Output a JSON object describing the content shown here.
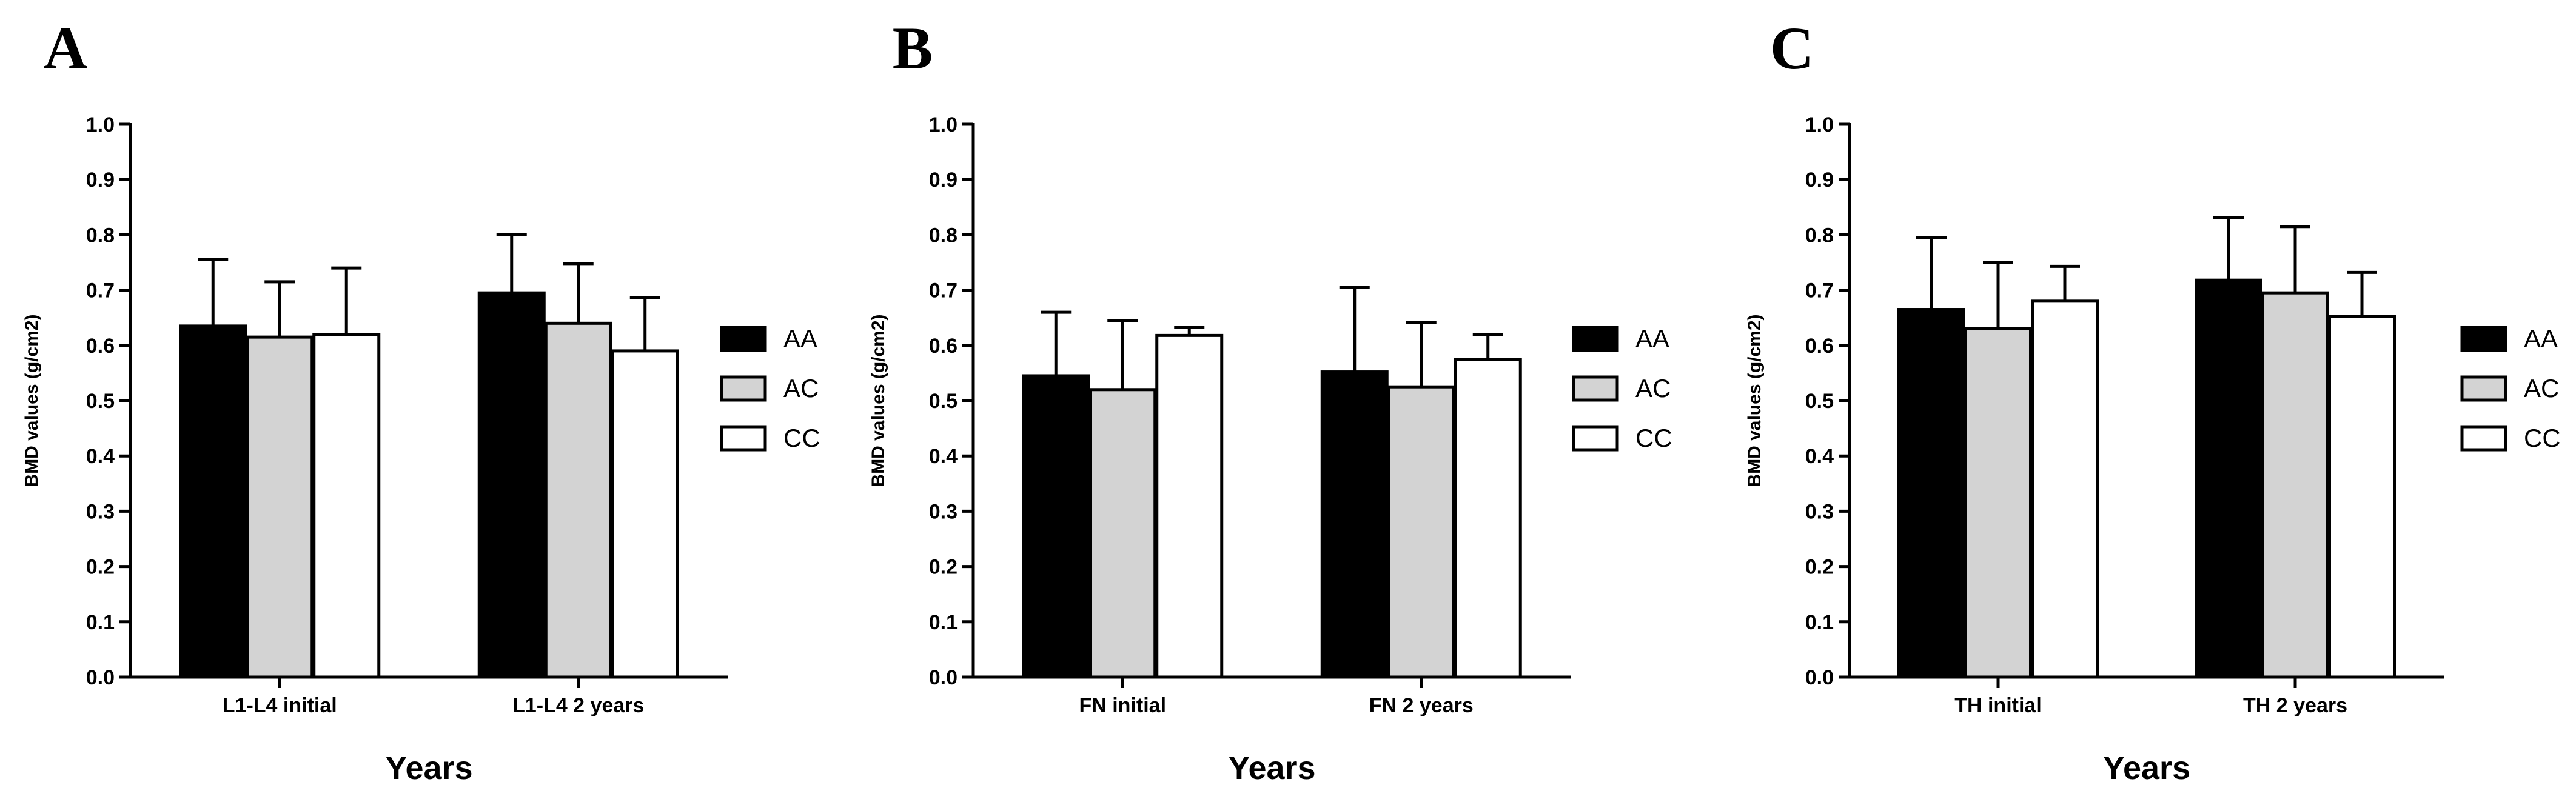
{
  "colors": {
    "AA": "#000000",
    "AC": "#d3d3d3",
    "CC": "#ffffff"
  },
  "chart_data": [
    {
      "type": "bar",
      "panel": "A",
      "xlabel": "Years",
      "ylabel": "BMD values (g/cm2)",
      "ylim": [
        0,
        1.0
      ],
      "yticks": [
        "0.0",
        "0.1",
        "0.2",
        "0.3",
        "0.4",
        "0.5",
        "0.6",
        "0.7",
        "0.8",
        "0.9",
        "1.0"
      ],
      "categories": [
        "L1-L4 initial",
        "L1-L4 2 years"
      ],
      "legend": "right",
      "series": [
        {
          "name": "AA",
          "values": [
            0.635,
            0.695
          ],
          "errors": [
            0.12,
            0.105
          ]
        },
        {
          "name": "AC",
          "values": [
            0.615,
            0.64
          ],
          "errors": [
            0.1,
            0.108
          ]
        },
        {
          "name": "CC",
          "values": [
            0.62,
            0.59
          ],
          "errors": [
            0.12,
            0.097
          ]
        }
      ]
    },
    {
      "type": "bar",
      "panel": "B",
      "xlabel": "Years",
      "ylabel": "BMD values (g/cm2)",
      "ylim": [
        0,
        1.0
      ],
      "yticks": [
        "0.0",
        "0.1",
        "0.2",
        "0.3",
        "0.4",
        "0.5",
        "0.6",
        "0.7",
        "0.8",
        "0.9",
        "1.0"
      ],
      "categories": [
        "FN initial",
        "FN 2 years"
      ],
      "legend": "right",
      "series": [
        {
          "name": "AA",
          "values": [
            0.545,
            0.552
          ],
          "errors": [
            0.115,
            0.153
          ]
        },
        {
          "name": "AC",
          "values": [
            0.52,
            0.525
          ],
          "errors": [
            0.125,
            0.117
          ]
        },
        {
          "name": "CC",
          "values": [
            0.618,
            0.575
          ],
          "errors": [
            0.015,
            0.045
          ]
        }
      ]
    },
    {
      "type": "bar",
      "panel": "C",
      "xlabel": "Years",
      "ylabel": "BMD values (g/cm2)",
      "ylim": [
        0,
        1.0
      ],
      "yticks": [
        "0.0",
        "0.1",
        "0.2",
        "0.3",
        "0.4",
        "0.5",
        "0.6",
        "0.7",
        "0.8",
        "0.9",
        "1.0"
      ],
      "categories": [
        "TH initial",
        "TH 2 years"
      ],
      "legend": "right",
      "series": [
        {
          "name": "AA",
          "values": [
            0.665,
            0.718
          ],
          "errors": [
            0.13,
            0.113
          ]
        },
        {
          "name": "AC",
          "values": [
            0.63,
            0.695
          ],
          "errors": [
            0.12,
            0.12
          ]
        },
        {
          "name": "CC",
          "values": [
            0.68,
            0.652
          ],
          "errors": [
            0.063,
            0.08
          ]
        }
      ]
    }
  ]
}
